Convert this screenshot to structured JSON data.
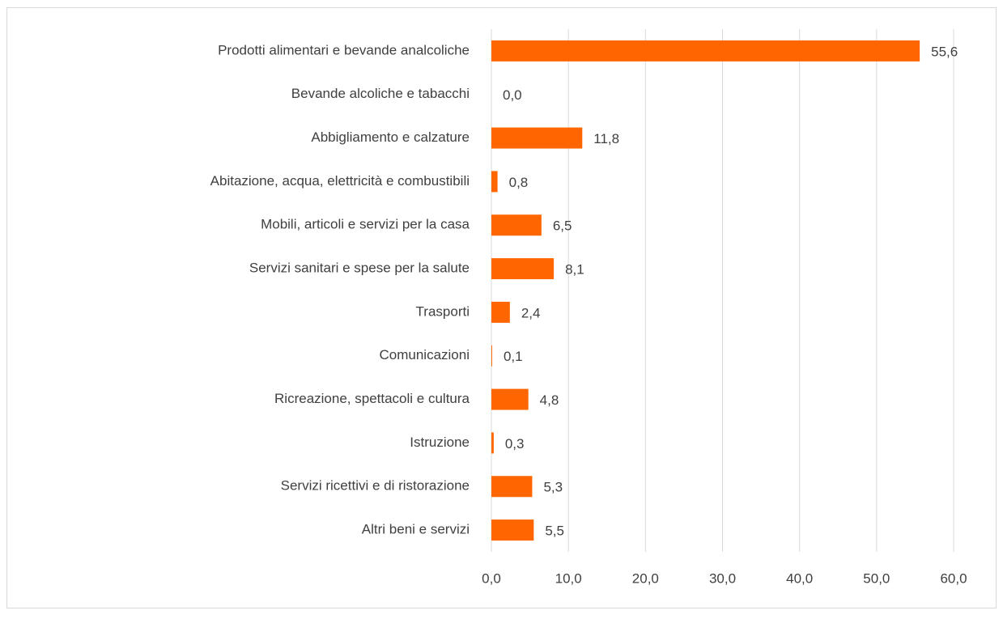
{
  "chart_data": {
    "type": "bar",
    "orientation": "horizontal",
    "categories": [
      "Prodotti alimentari e bevande analcoliche",
      "Bevande alcoliche e tabacchi",
      "Abbigliamento e calzature",
      "Abitazione, acqua, elettricità e combustibili",
      "Mobili, articoli e servizi per la casa",
      "Servizi sanitari e spese per la salute",
      "Trasporti",
      "Comunicazioni",
      "Ricreazione, spettacoli e cultura",
      "Istruzione",
      "Servizi ricettivi e di ristorazione",
      "Altri beni e servizi"
    ],
    "values": [
      55.6,
      0.0,
      11.8,
      0.8,
      6.5,
      8.1,
      2.4,
      0.1,
      4.8,
      0.3,
      5.3,
      5.5
    ],
    "value_labels": [
      "55,6",
      "0,0",
      "11,8",
      "0,8",
      "6,5",
      "8,1",
      "2,4",
      "0,1",
      "4,8",
      "0,3",
      "5,3",
      "5,5"
    ],
    "color": "#ff6600",
    "xlim": [
      0,
      60
    ],
    "xticks": [
      {
        "value": 0,
        "label": "0,0"
      },
      {
        "value": 10,
        "label": "10,0"
      },
      {
        "value": 20,
        "label": "20,0"
      },
      {
        "value": 30,
        "label": "30,0"
      },
      {
        "value": 40,
        "label": "40,0"
      },
      {
        "value": 50,
        "label": "50,0"
      },
      {
        "value": 60,
        "label": "60,0"
      }
    ],
    "grid": true
  }
}
